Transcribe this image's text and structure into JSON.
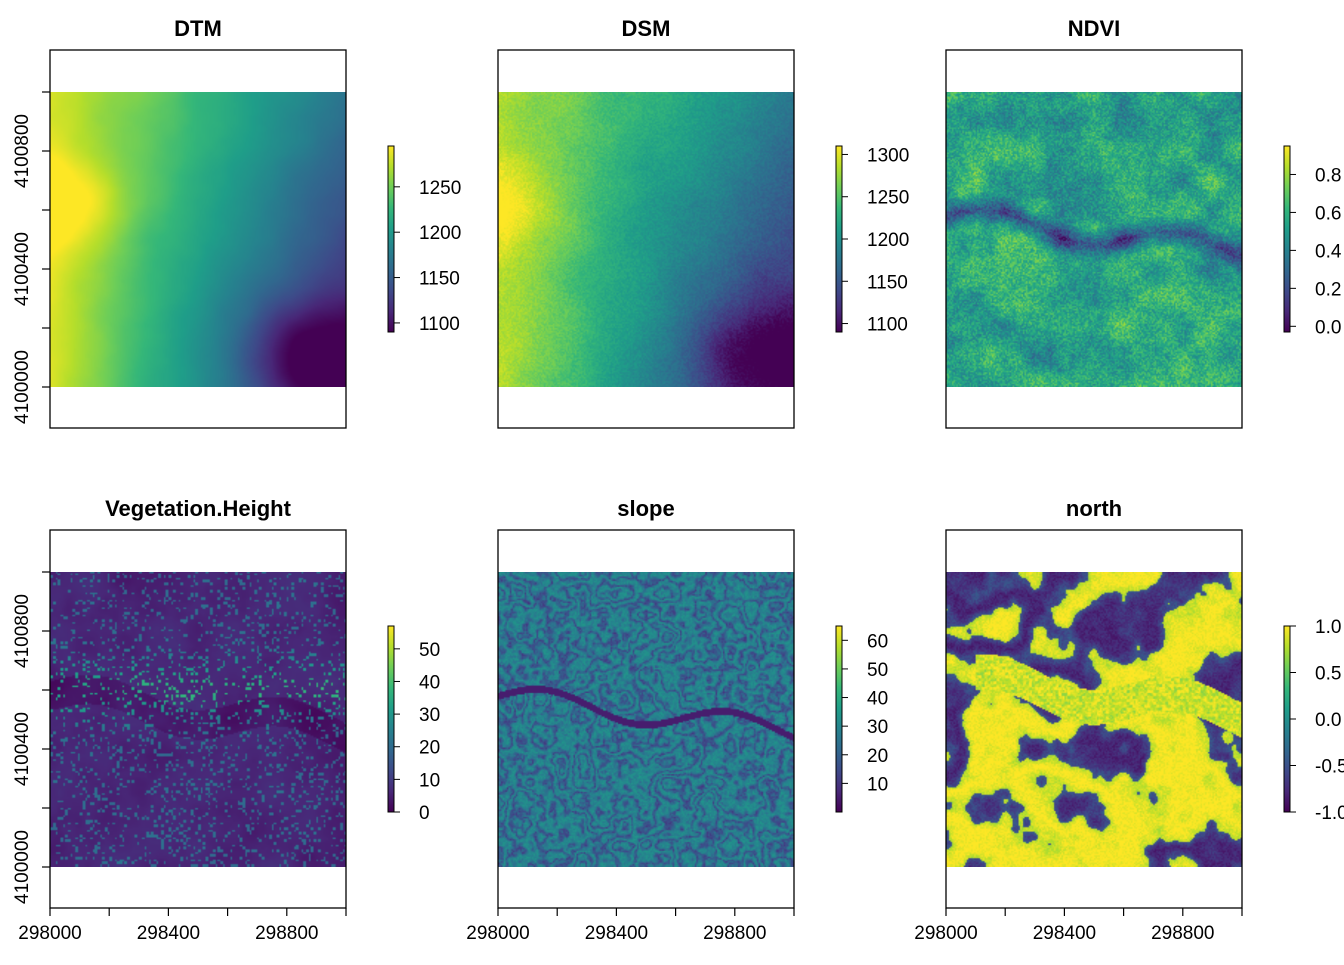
{
  "chart_data": [
    {
      "type": "heatmap",
      "title": "DTM",
      "legend": {
        "ticks": [
          "1100",
          "1150",
          "1200",
          "1250"
        ],
        "values": [
          1100,
          1150,
          1200,
          1250
        ],
        "min": 1090,
        "max": 1295
      },
      "y_axis": {
        "show": true,
        "ticks": [
          "4100000",
          "4100400",
          "4100800"
        ],
        "values": [
          4100000,
          4100400,
          4100800
        ],
        "minor": [
          4100200,
          4100600,
          4101000
        ]
      },
      "x_axis": {
        "show": false
      },
      "pattern": "dtm"
    },
    {
      "type": "heatmap",
      "title": "DSM",
      "legend": {
        "ticks": [
          "1100",
          "1150",
          "1200",
          "1250",
          "1300"
        ],
        "values": [
          1100,
          1150,
          1200,
          1250,
          1300
        ],
        "min": 1090,
        "max": 1310
      },
      "y_axis": {
        "show": false
      },
      "x_axis": {
        "show": false
      },
      "pattern": "dsm"
    },
    {
      "type": "heatmap",
      "title": "NDVI",
      "legend": {
        "ticks": [
          "0.0",
          "0.2",
          "0.4",
          "0.6",
          "0.8"
        ],
        "values": [
          0.0,
          0.2,
          0.4,
          0.6,
          0.8
        ],
        "min": -0.03,
        "max": 0.95
      },
      "y_axis": {
        "show": false
      },
      "x_axis": {
        "show": false
      },
      "pattern": "ndvi"
    },
    {
      "type": "heatmap",
      "title": "Vegetation.Height",
      "legend": {
        "ticks": [
          "0",
          "10",
          "20",
          "30",
          "40",
          "50"
        ],
        "values": [
          0,
          10,
          20,
          30,
          40,
          50
        ],
        "min": 0,
        "max": 57
      },
      "y_axis": {
        "show": true,
        "ticks": [
          "4100000",
          "4100400",
          "4100800"
        ],
        "values": [
          4100000,
          4100400,
          4100800
        ],
        "minor": [
          4100200,
          4100600,
          4101000
        ]
      },
      "x_axis": {
        "show": true,
        "ticks": [
          "298000",
          "298400",
          "298800"
        ],
        "values": [
          298000,
          298400,
          298800
        ],
        "minor": [
          298200,
          298600,
          299000
        ]
      },
      "pattern": "veg"
    },
    {
      "type": "heatmap",
      "title": "slope",
      "legend": {
        "ticks": [
          "10",
          "20",
          "30",
          "40",
          "50",
          "60"
        ],
        "values": [
          10,
          20,
          30,
          40,
          50,
          60
        ],
        "min": 0,
        "max": 65
      },
      "y_axis": {
        "show": false
      },
      "x_axis": {
        "show": true,
        "ticks": [
          "298000",
          "298400",
          "298800"
        ],
        "values": [
          298000,
          298400,
          298800
        ],
        "minor": [
          298200,
          298600,
          299000
        ]
      },
      "pattern": "slope"
    },
    {
      "type": "heatmap",
      "title": "north",
      "legend": {
        "ticks": [
          "-1.0",
          "-0.5",
          "0.0",
          "0.5",
          "1.0"
        ],
        "values": [
          -1.0,
          -0.5,
          0.0,
          0.5,
          1.0
        ],
        "min": -1.0,
        "max": 1.0
      },
      "y_axis": {
        "show": false
      },
      "x_axis": {
        "show": true,
        "ticks": [
          "298000",
          "298400",
          "298800"
        ],
        "values": [
          298000,
          298400,
          298800
        ],
        "minor": [
          298200,
          298600,
          299000
        ]
      },
      "pattern": "north"
    }
  ],
  "colormap": [
    "#440154",
    "#482878",
    "#3e4a89",
    "#31688e",
    "#26828e",
    "#1f9e89",
    "#35b779",
    "#6ece58",
    "#b5de2b",
    "#fde725"
  ]
}
